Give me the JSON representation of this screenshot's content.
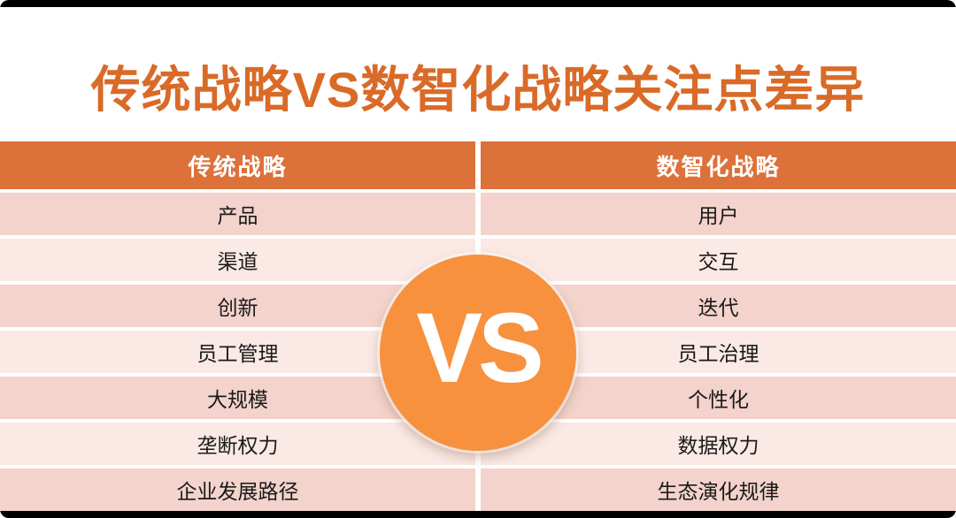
{
  "title": "传统战略VS数智化战略关注点差异",
  "vs_badge_label": "VS",
  "chart_data": {
    "type": "table",
    "title": "传统战略VS数智化战略关注点差异",
    "columns": [
      "传统战略",
      "数智化战略"
    ],
    "rows": [
      [
        "产品",
        "用户"
      ],
      [
        "渠道",
        "交互"
      ],
      [
        "创新",
        "迭代"
      ],
      [
        "员工管理",
        "员工治理"
      ],
      [
        "大规模",
        "个性化"
      ],
      [
        "垄断权力",
        "数据权力"
      ],
      [
        "企业发展路径",
        "生态演化规律"
      ]
    ],
    "annotations": [
      "VS"
    ],
    "layout": "two-column comparison table, banded rows, center VS badge"
  },
  "colors": {
    "title_text": "#D96A28",
    "header_bg": "#DC713A",
    "header_text": "#FFFFFF",
    "row_dark": "#F3D3CB",
    "row_light": "#FAE9E5",
    "vs_circle": "#F7913D",
    "vs_text": "#FFFFFF",
    "cell_text": "#1A1A1A",
    "edge_bar": "#000000",
    "background": "#FFFFFF"
  }
}
